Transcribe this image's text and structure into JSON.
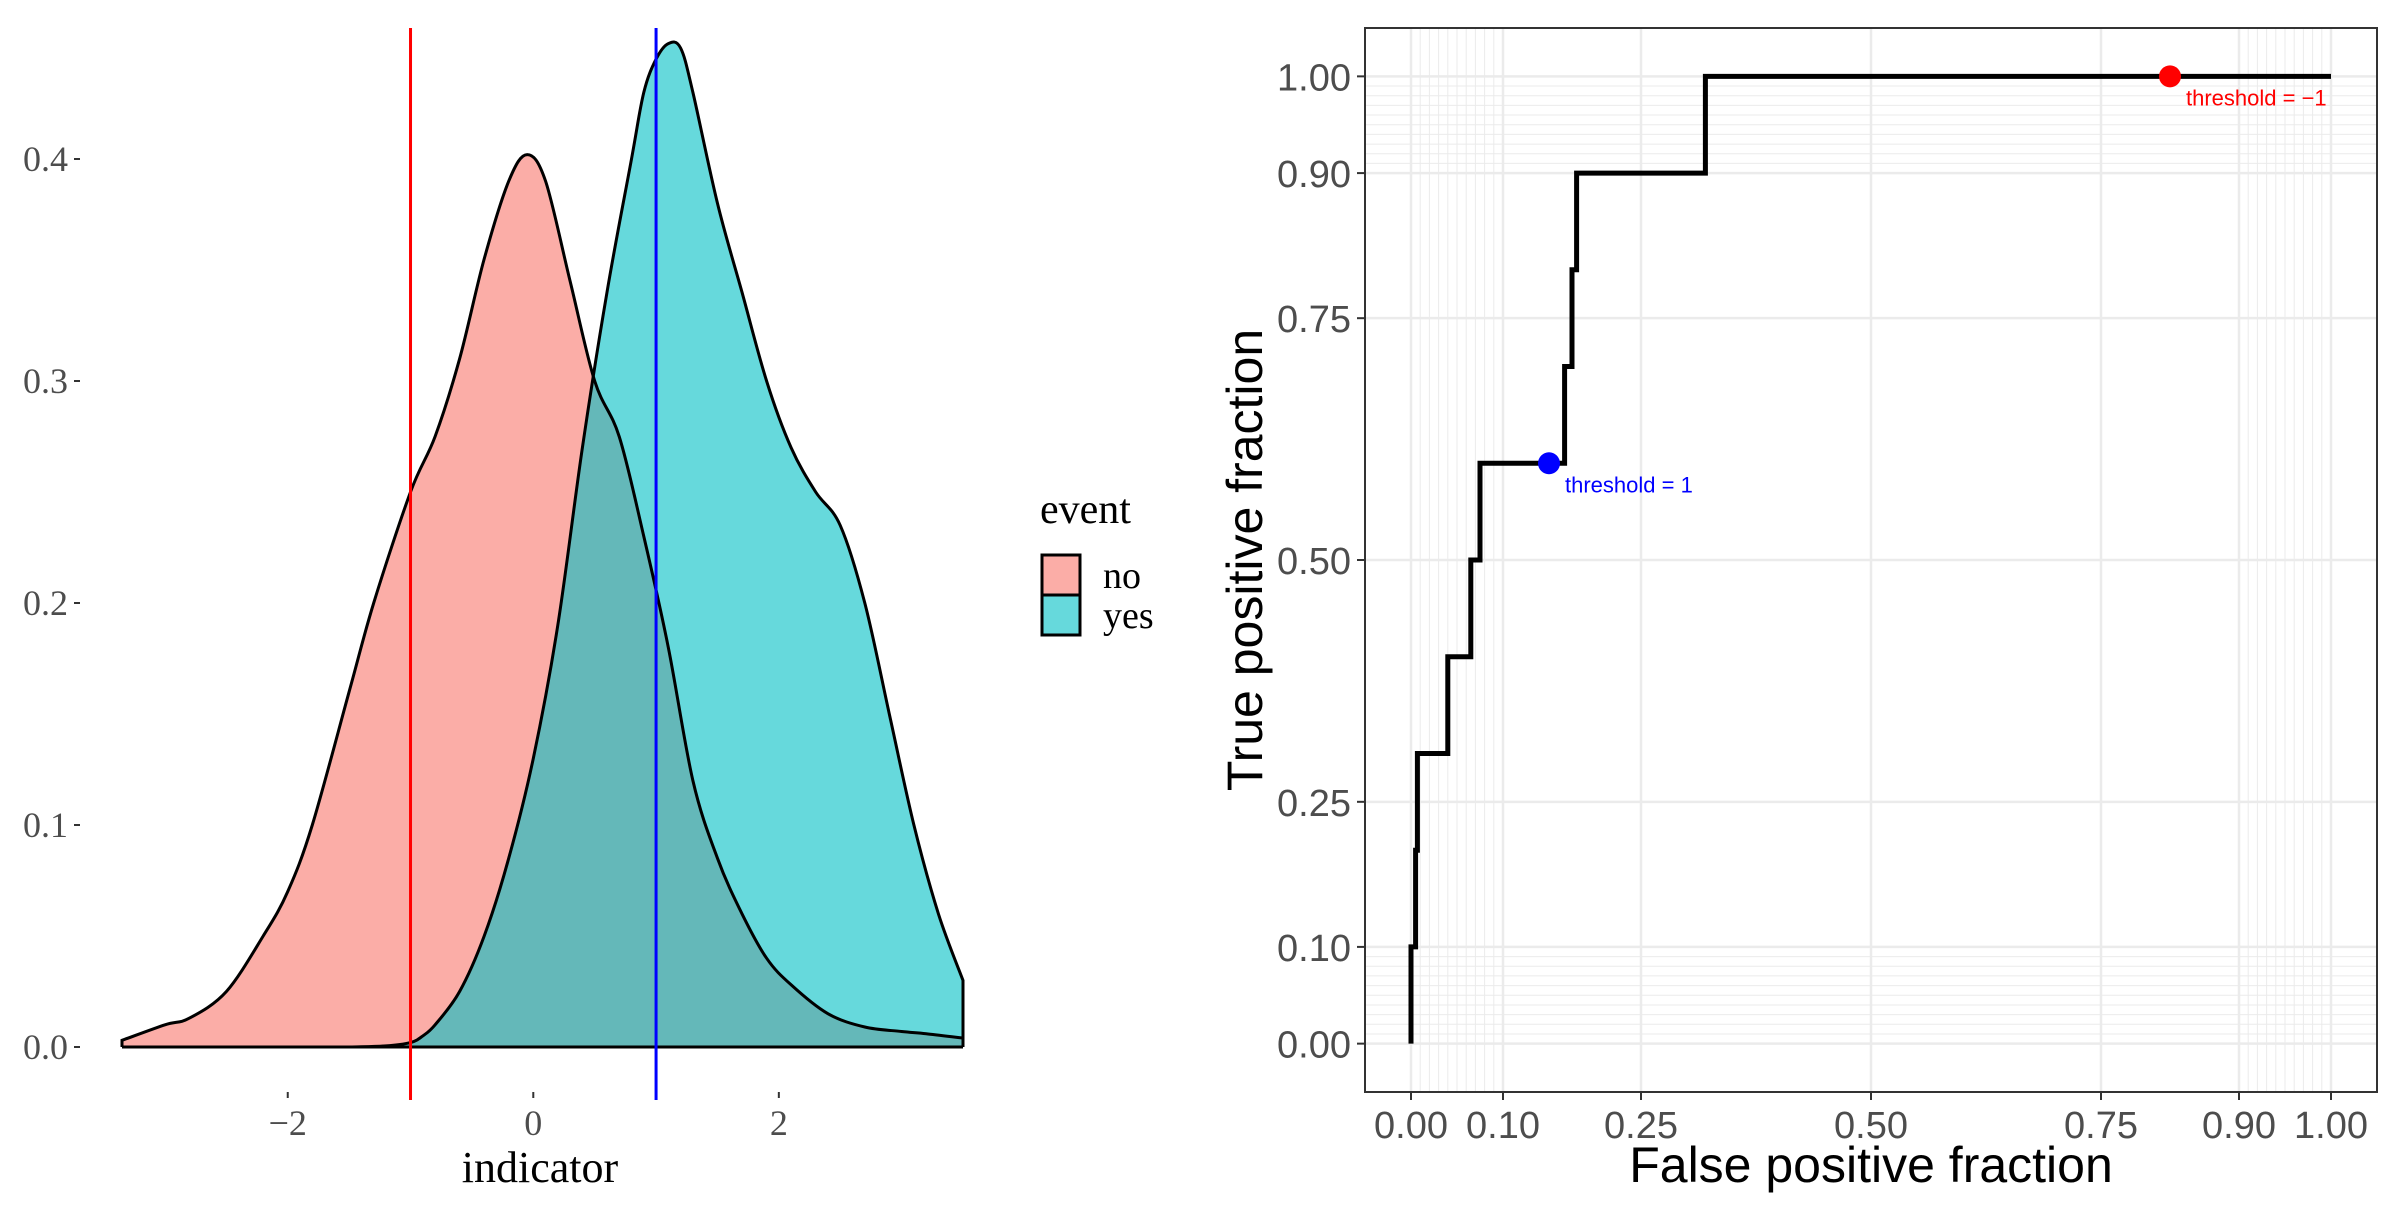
{
  "colors": {
    "no_fill": "#F8766D",
    "yes_fill": "#00BFC4",
    "red_line": "#FF0000",
    "blue_line": "#0000FF",
    "grid": "#EBEBEB",
    "text": "#333333"
  },
  "chart_data": [
    {
      "type": "area",
      "subtype": "density",
      "title": "",
      "xlabel": "indicator",
      "ylabel": "",
      "xlim": [
        -3.35,
        3.5
      ],
      "ylim": [
        0,
        0.45
      ],
      "x_ticks": [
        -2,
        0,
        2
      ],
      "x_tick_labels": [
        "−2",
        "0",
        "2"
      ],
      "y_ticks": [
        0.0,
        0.1,
        0.2,
        0.3,
        0.4
      ],
      "y_tick_labels": [
        "0.0",
        "0.1",
        "0.2",
        "0.3",
        "0.4"
      ],
      "legend": {
        "title": "event",
        "position": "right",
        "entries": [
          {
            "label": "no",
            "color": "#F8766D"
          },
          {
            "label": "yes",
            "color": "#00BFC4"
          }
        ]
      },
      "series": [
        {
          "name": "no",
          "x": [
            -3.35,
            -3.0,
            -2.8,
            -2.5,
            -2.2,
            -2.0,
            -1.8,
            -1.5,
            -1.3,
            -1.0,
            -0.8,
            -0.6,
            -0.4,
            -0.2,
            -0.05,
            0.1,
            0.3,
            0.5,
            0.7,
            0.9,
            1.1,
            1.3,
            1.5,
            1.7,
            1.9,
            2.1,
            2.4,
            2.7,
            3.0,
            3.2,
            3.5
          ],
          "y": [
            0.003,
            0.01,
            0.013,
            0.025,
            0.05,
            0.07,
            0.1,
            0.16,
            0.2,
            0.25,
            0.275,
            0.31,
            0.355,
            0.39,
            0.402,
            0.39,
            0.345,
            0.3,
            0.275,
            0.23,
            0.18,
            0.12,
            0.085,
            0.06,
            0.04,
            0.028,
            0.015,
            0.009,
            0.007,
            0.006,
            0.004
          ]
        },
        {
          "name": "yes",
          "x": [
            -1.5,
            -1.2,
            -1.0,
            -0.9,
            -0.8,
            -0.6,
            -0.4,
            -0.2,
            0.0,
            0.2,
            0.4,
            0.6,
            0.8,
            0.9,
            1.0,
            1.1,
            1.2,
            1.3,
            1.5,
            1.7,
            1.9,
            2.1,
            2.3,
            2.5,
            2.7,
            2.9,
            3.1,
            3.3,
            3.5
          ],
          "y": [
            0.0,
            0.0005,
            0.002,
            0.005,
            0.01,
            0.025,
            0.05,
            0.085,
            0.13,
            0.19,
            0.27,
            0.34,
            0.4,
            0.43,
            0.445,
            0.452,
            0.45,
            0.43,
            0.38,
            0.34,
            0.3,
            0.27,
            0.25,
            0.235,
            0.2,
            0.15,
            0.1,
            0.06,
            0.03
          ]
        }
      ],
      "vlines": [
        {
          "x": -1,
          "color": "#FF0000"
        },
        {
          "x": 1,
          "color": "#0000FF"
        }
      ]
    },
    {
      "type": "line",
      "subtype": "roc-step",
      "title": "",
      "xlabel": "False positive fraction",
      "ylabel": "True positive fraction",
      "xlim": [
        -0.05,
        1.05
      ],
      "ylim": [
        -0.05,
        1.05
      ],
      "x_ticks": [
        0.0,
        0.1,
        0.25,
        0.5,
        0.75,
        0.9,
        1.0
      ],
      "x_tick_labels": [
        "0.00",
        "0.10",
        "0.25",
        "0.50",
        "0.75",
        "0.90",
        "1.00"
      ],
      "y_ticks": [
        0.0,
        0.1,
        0.25,
        0.5,
        0.75,
        0.9,
        1.0
      ],
      "y_tick_labels": [
        "0.00",
        "0.10",
        "0.25",
        "0.50",
        "0.75",
        "0.90",
        "1.00"
      ],
      "minor_grid": [
        0.01,
        0.02,
        0.03,
        0.04,
        0.05,
        0.06,
        0.07,
        0.08,
        0.09,
        0.91,
        0.92,
        0.93,
        0.94,
        0.95,
        0.96,
        0.97,
        0.98,
        0.99
      ],
      "roc_x": [
        0.0,
        0.0,
        0.005,
        0.005,
        0.007,
        0.007,
        0.01,
        0.01,
        0.04,
        0.04,
        0.065,
        0.065,
        0.075,
        0.075,
        0.15,
        0.15,
        0.167,
        0.167,
        0.175,
        0.175,
        0.18,
        0.18,
        0.32,
        0.32,
        1.0
      ],
      "roc_y": [
        0.0,
        0.1,
        0.1,
        0.2,
        0.2,
        0.3,
        0.3,
        0.3,
        0.3,
        0.4,
        0.4,
        0.5,
        0.5,
        0.6,
        0.6,
        0.6,
        0.6,
        0.7,
        0.7,
        0.8,
        0.8,
        0.9,
        0.9,
        1.0,
        1.0
      ],
      "points": [
        {
          "x": 0.15,
          "y": 0.6,
          "label": "threshold = 1",
          "color": "#0000FF"
        },
        {
          "x": 0.825,
          "y": 1.0,
          "label": "threshold = −1",
          "color": "#FF0000"
        }
      ]
    }
  ]
}
